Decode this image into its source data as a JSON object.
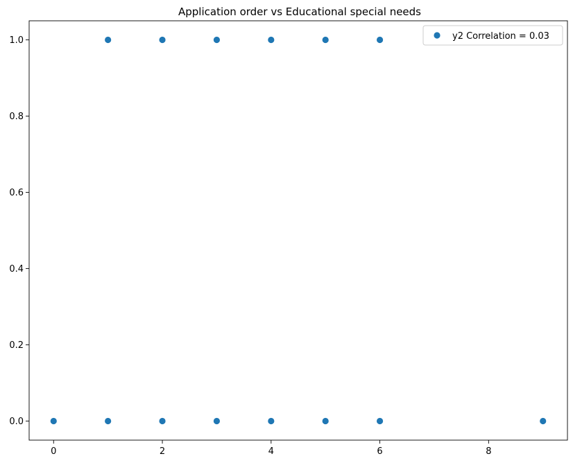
{
  "chart_data": {
    "type": "scatter",
    "title": "Application order vs Educational special needs",
    "xlabel": "",
    "ylabel": "",
    "xlim": [
      -0.45,
      9.45
    ],
    "ylim": [
      -0.05,
      1.05
    ],
    "x_ticks": [
      0,
      2,
      4,
      6,
      8
    ],
    "y_ticks": [
      0.0,
      0.2,
      0.4,
      0.6,
      0.8,
      1.0
    ],
    "x_tick_labels": [
      "0",
      "2",
      "4",
      "6",
      "8"
    ],
    "y_tick_labels": [
      "0.0",
      "0.2",
      "0.4",
      "0.6",
      "0.8",
      "1.0"
    ],
    "grid": false,
    "legend_position": "top-right",
    "series": [
      {
        "name": "y2 Correlation = 0.03",
        "color": "#1f77b4",
        "points": [
          {
            "x": 1,
            "y": 1
          },
          {
            "x": 2,
            "y": 1
          },
          {
            "x": 3,
            "y": 1
          },
          {
            "x": 4,
            "y": 1
          },
          {
            "x": 5,
            "y": 1
          },
          {
            "x": 6,
            "y": 1
          },
          {
            "x": 0,
            "y": 0
          },
          {
            "x": 1,
            "y": 0
          },
          {
            "x": 2,
            "y": 0
          },
          {
            "x": 3,
            "y": 0
          },
          {
            "x": 4,
            "y": 0
          },
          {
            "x": 5,
            "y": 0
          },
          {
            "x": 6,
            "y": 0
          },
          {
            "x": 9,
            "y": 0
          }
        ]
      }
    ]
  }
}
